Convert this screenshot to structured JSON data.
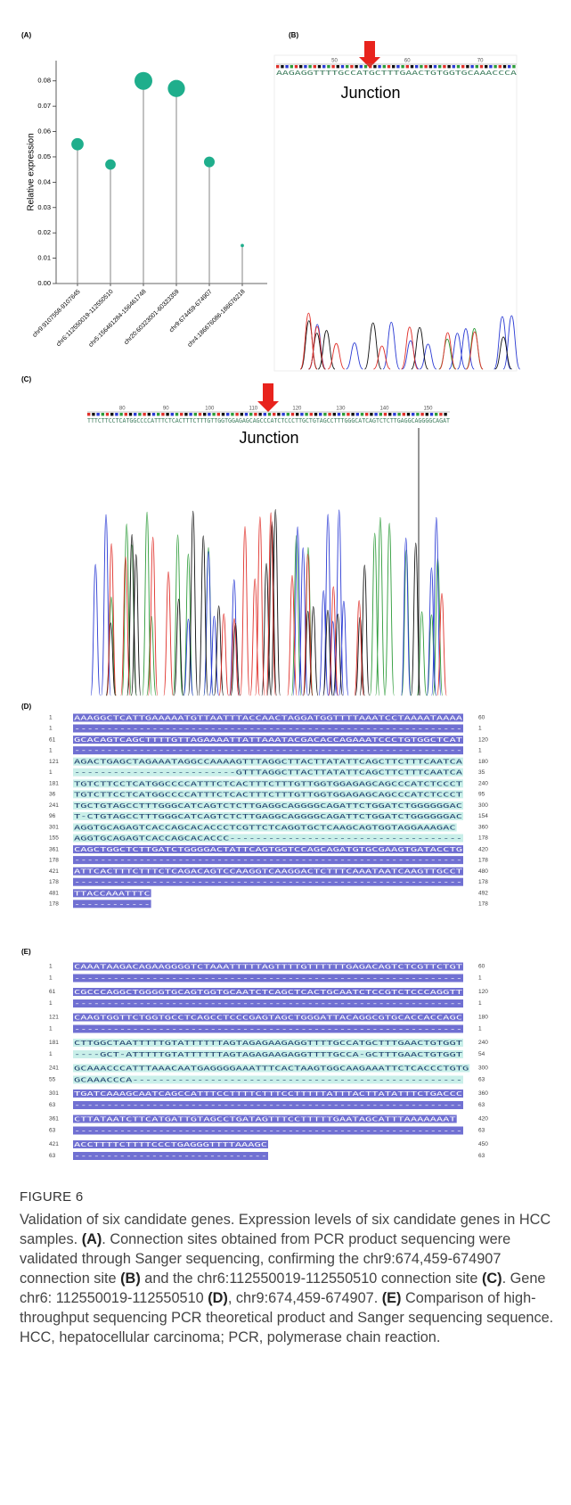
{
  "chart_data": {
    "type": "lollipop",
    "label": "(A)",
    "ylabel": "Relative expression",
    "categories": [
      "chr9:9107558-9107645",
      "chr6:112550019-112550510",
      "chr5:156461284-156461748",
      "chr20:60323001-60323359",
      "chr9:674459-674907",
      "chr4:186676086-186676218"
    ],
    "values": [
      0.055,
      0.047,
      0.08,
      0.077,
      0.048,
      0.015
    ],
    "color": "#1fae8c",
    "stem_color": "#9a9a9a",
    "ylim": [
      0,
      0.088
    ],
    "yticks": [
      {
        "value": 0,
        "label": "0.00"
      },
      0.01,
      0.02,
      0.03,
      0.04,
      0.05,
      0.06,
      0.07,
      0.08
    ]
  },
  "panel_b": {
    "label": "(B)",
    "ruler": [
      50,
      60,
      70
    ],
    "sequence": "AAGAGGTTTTGCCATGCTTTGAACTGTGGTGCAAACCCA",
    "annotation": "Junction"
  },
  "panel_c": {
    "label": "(C)",
    "ruler": [
      80,
      90,
      100,
      110,
      120,
      130,
      140,
      150
    ],
    "sequence": "TTTCTTCCTCATGGCCCCATTTCTCACTTTCTTTGTTGGTGGAGAGCAGCCCATCTCCCTTGCTGTAGCCTTTGGGCATCAGTCTCTTGAGGCAGGGGCAGAT",
    "annotation": "Junction"
  },
  "panel_d": {
    "label": "(D)",
    "rows": [
      {
        "start": 1,
        "seq": "AAAGGCTCATTGAAAAATGTTAATTTACCAACTAGGATGGTTTTAAATCCTAAAATAAAA",
        "end": 60
      },
      {
        "start": 1,
        "seq": "------------------------------------------------------------",
        "end": 1
      },
      {
        "start": 61,
        "seq": "GCACAGTCAGCTTTTGTTAGAAAATTATTAAATACGACACCAGAAATCCCTGTGGCTCAT",
        "end": 120
      },
      {
        "start": 1,
        "seq": "------------------------------------------------------------",
        "end": 1
      },
      {
        "start": 121,
        "seq": "AGACTGAGCTAGAAATAGGCCAAAAGTTTAGGCTTACTTATATTCAGCTTCTTTCAATCA",
        "end": 180
      },
      {
        "start": 1,
        "seq": "-------------------------GTTTAGGCTTACTTATATTCAGCTTCTTTCAATCA",
        "end": 35
      },
      {
        "start": 181,
        "seq": "TGTCTTCCTCATGGCCCCATTTCTCACTTTCTTTGTTGGTGGAGAGCAGCCCATCTCCCT",
        "end": 240
      },
      {
        "start": 36,
        "seq": "TGTCTTCCTCATGGCCCCATTTCTCACTTTCTTTGTTGGTGGAGAGCAGCCCATCTCCCT",
        "end": 95
      },
      {
        "start": 241,
        "seq": "TGCTGTAGCCTTTGGGCATCAGTCTCTTGAGGCAGGGGCAGATTCTGGATCTGGGGGGAC",
        "end": 300
      },
      {
        "start": 96,
        "seq": "T-CTGTAGCCTTTGGGCATCAGTCTCTTGAGGCAGGGGCAGATTCTGGATCTGGGGGGAC",
        "end": 154
      },
      {
        "start": 301,
        "seq": "AGGTGCAGAGTCACCAGCACACCCTCGTTCTCAGGTGCTCAAGCAGTGGTAGGAAAGAC",
        "end": 360
      },
      {
        "start": 155,
        "seq": "AGGTGCAGAGTCACCAGCACACCC------------------------------------",
        "end": 178
      },
      {
        "start": 361,
        "seq": "CAGCTGGCTCTTGATCTGGGGACTATTCAGTGGTCCAGCAGATGTGCGAAGTGATACCTG",
        "end": 420
      },
      {
        "start": 178,
        "seq": "------------------------------------------------------------",
        "end": 178
      },
      {
        "start": 421,
        "seq": "ATTCACTTTCTTTCTCAGACAGTCCAAGGTCAAGGACTCTTTCAAATAATCAAGTTGCCT",
        "end": 480
      },
      {
        "start": 178,
        "seq": "------------------------------------------------------------",
        "end": 178
      },
      {
        "start": 481,
        "seq": "TTACCAAATTTC",
        "end": 492
      },
      {
        "start": 178,
        "seq": "------------",
        "end": 178
      }
    ]
  },
  "panel_e": {
    "label": "(E)",
    "rows": [
      {
        "start": 1,
        "seq": "CAAATAAGACAGAAGGGGTCTAAATTTTTAGTTTTGTTTTTTGAGACAGTCTCGTTCTGT",
        "end": 60
      },
      {
        "start": 1,
        "seq": "------------------------------------------------------------",
        "end": 1
      },
      {
        "start": 61,
        "seq": "CGCCCAGGCTGGGGTGCAGTGGTGCAATCTCAGCTCACTGCAATCTCCGTCTCCCAGGTT",
        "end": 120
      },
      {
        "start": 1,
        "seq": "------------------------------------------------------------",
        "end": 1
      },
      {
        "start": 121,
        "seq": "CAAGTGGTTCTGGTGCCTCAGCCTCCCGAGTAGCTGGGATTACAGGCGTGCACCACCAGC",
        "end": 180
      },
      {
        "start": 1,
        "seq": "------------------------------------------------------------",
        "end": 1
      },
      {
        "start": 181,
        "seq": "CTTGGCTAATTTTTGTATTTTTTAGTAGAGAAGAGGTTTTGCCATGCTTTGAACTGTGGT",
        "end": 240
      },
      {
        "start": 1,
        "seq": "----GCT-ATTTTTGTATTTTTTAGTAGAGAAGAGGTTTTGCCA-GCTTTGAACTGTGGT",
        "end": 54
      },
      {
        "start": 241,
        "seq": "GCAAACCCATTTAAACAATGAGGGGAAATTTCACTAAGTGGCAAGAAATTCTCACCCTGTG",
        "end": 300
      },
      {
        "start": 55,
        "seq": "GCAAACCCA---------------------------------------------------",
        "end": 63
      },
      {
        "start": 301,
        "seq": "TGATCAAAGCAATCAGCCATTTCCTTTTCTTTCCTTTTTATTTACTTATATTTCTGACCC",
        "end": 360
      },
      {
        "start": 63,
        "seq": "------------------------------------------------------------",
        "end": 63
      },
      {
        "start": 361,
        "seq": "CTTATAATCTTCATGATTGTAGCCTGATAGTTTCCTTTTTGAATAGCATTTAAAAAAAT",
        "end": 420
      },
      {
        "start": 63,
        "seq": "------------------------------------------------------------",
        "end": 63
      },
      {
        "start": 421,
        "seq": "ACCTTTTCTTTTCCCTGAGGGTTTTAAAGC",
        "end": 450
      },
      {
        "start": 63,
        "seq": "------------------------------",
        "end": 63
      }
    ]
  },
  "figure": {
    "title": "FIGURE 6",
    "caption": [
      "Validation of six candidate genes. Expression levels of six candidate genes in HCC samples. ",
      "(A)",
      ". Connection sites obtained from PCR product sequencing were validated through Sanger sequencing, confirming the chr9:674,459-674907 connection site ",
      "(B)",
      " and the chr6:112550019-112550510 connection site ",
      "(C)",
      ". Gene chr6: 112550019-112550510 ",
      "(D)",
      ", chr9:674,459-674907. ",
      "(E)",
      " Comparison of high-throughput sequencing PCR theoretical product and Sanger sequencing sequence. HCC, hepatocellular carcinoma; PCR, polymerase chain reaction."
    ]
  }
}
